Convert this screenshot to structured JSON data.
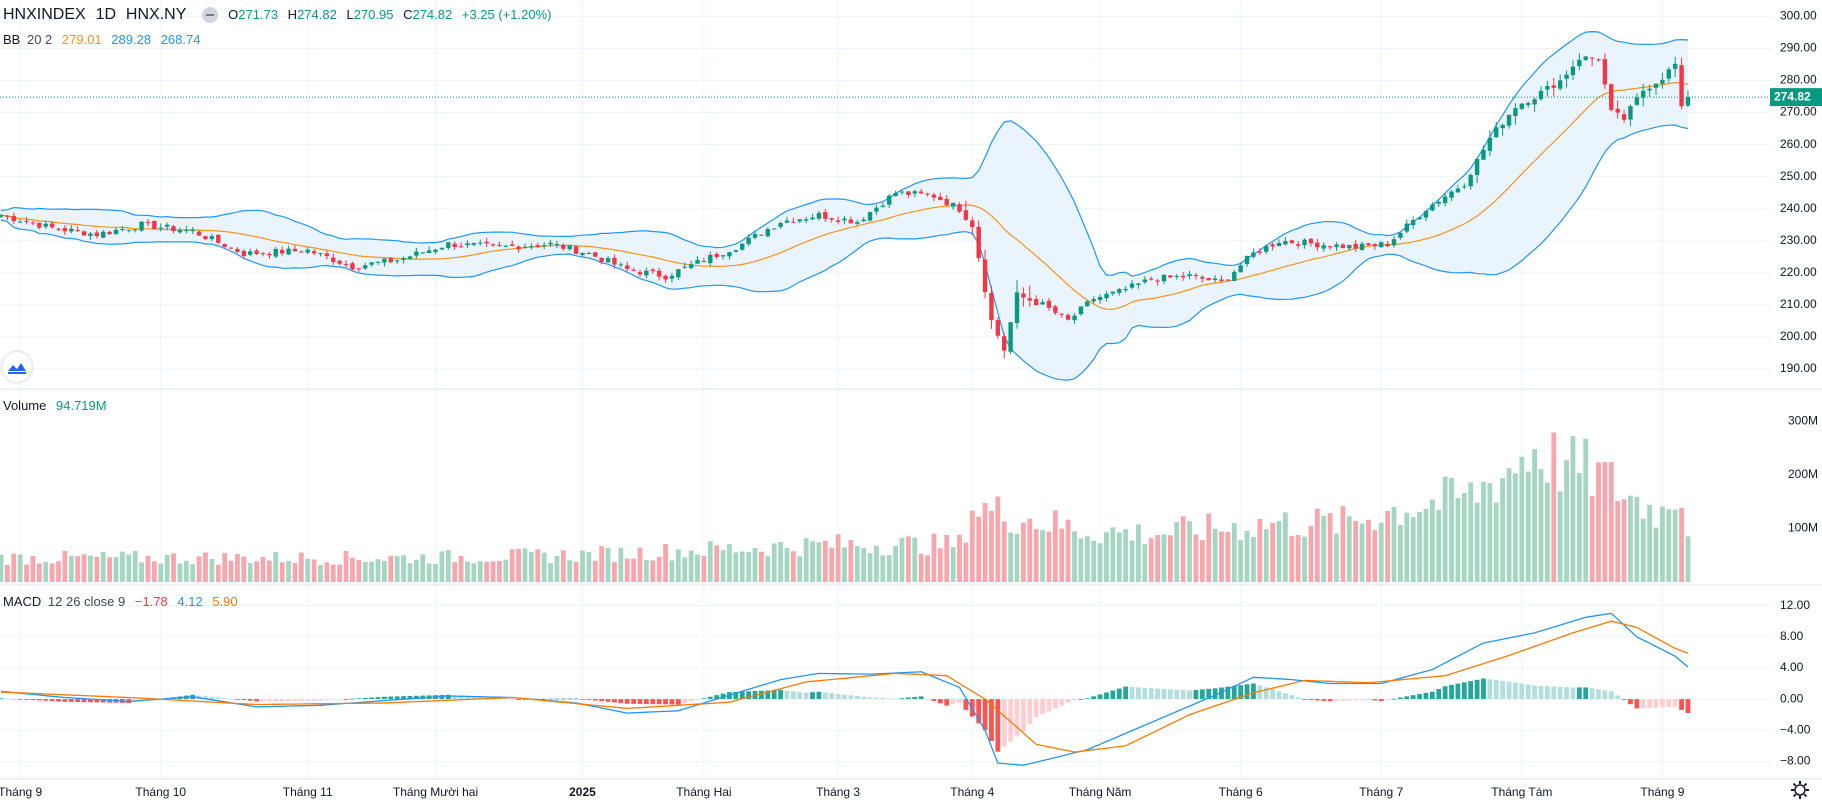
{
  "header": {
    "symbol": "HNXINDEX",
    "interval": "1D",
    "exchange": "HNX.NY",
    "ohlc": {
      "open_label": "O",
      "open": "271.73",
      "high_label": "H",
      "high": "274.82",
      "low_label": "L",
      "low": "270.95",
      "close_label": "C",
      "close": "274.82",
      "change": "+3.25 (+1.20%)"
    }
  },
  "bb_legend": {
    "name": "BB",
    "params": "20 2",
    "basis": "279.01",
    "upper": "289.28",
    "lower": "268.74"
  },
  "volume_legend": {
    "name": "Volume",
    "value": "94.719M"
  },
  "macd_legend": {
    "name": "MACD",
    "params": "12 26 close 9",
    "hist": "−1.78",
    "macd": "4.12",
    "signal": "5.90"
  },
  "colors": {
    "up": "#089981",
    "down": "#f23645",
    "vol_up": "#a5d6c1",
    "vol_down": "#f7a6ad",
    "bb_basis": "#f7931a",
    "bb_band": "#2196f3",
    "bb_fill": "#eaf4fd",
    "macd_line": "#2196f3",
    "signal_line": "#ff7a00",
    "hist_up_strong": "#26a69a",
    "hist_up_weak": "#b2dfdb",
    "hist_down_strong": "#ff5252",
    "hist_down_weak": "#ffcdd2",
    "price_tag": "#089981",
    "grid": "#f0f3fa"
  },
  "chart_data": {
    "type": "candlestick",
    "last_price": "274.82",
    "price_axis": {
      "ylim": [
        185,
        302
      ],
      "ticks": [
        "300.00",
        "290.00",
        "280.00",
        "270.00",
        "260.00",
        "250.00",
        "240.00",
        "230.00",
        "220.00",
        "210.00",
        "200.00",
        "190.00"
      ]
    },
    "volume_axis": {
      "ylim": [
        0,
        340
      ],
      "unit": "M",
      "ticks": [
        "300M",
        "200M",
        "100M"
      ]
    },
    "macd_axis": {
      "ylim": [
        -10,
        14
      ],
      "ticks": [
        "12.00",
        "8.00",
        "4.00",
        "0.00",
        "−4.00",
        "−8.00"
      ]
    },
    "x_ticks": [
      {
        "label": "Tháng 9",
        "bar": 3
      },
      {
        "label": "Tháng 10",
        "bar": 25
      },
      {
        "label": "Tháng 11",
        "bar": 48
      },
      {
        "label": "Tháng Mười hai",
        "bar": 68
      },
      {
        "label": "2025",
        "bar": 91
      },
      {
        "label": "Tháng Hai",
        "bar": 110
      },
      {
        "label": "Tháng 3",
        "bar": 131
      },
      {
        "label": "Tháng 4",
        "bar": 152
      },
      {
        "label": "Tháng Năm",
        "bar": 172
      },
      {
        "label": "Tháng 6",
        "bar": 194
      },
      {
        "label": "Tháng 7",
        "bar": 216
      },
      {
        "label": "Tháng Tám",
        "bar": 238
      },
      {
        "label": "Tháng 9",
        "bar": 260
      }
    ],
    "bars": 264,
    "close_anchors": [
      [
        0,
        238
      ],
      [
        8,
        234
      ],
      [
        15,
        232
      ],
      [
        22,
        235
      ],
      [
        30,
        233
      ],
      [
        38,
        226
      ],
      [
        48,
        227
      ],
      [
        55,
        222
      ],
      [
        62,
        224
      ],
      [
        70,
        229
      ],
      [
        78,
        228
      ],
      [
        86,
        229
      ],
      [
        92,
        226
      ],
      [
        98,
        221
      ],
      [
        104,
        219
      ],
      [
        110,
        224
      ],
      [
        116,
        229
      ],
      [
        122,
        236
      ],
      [
        128,
        238
      ],
      [
        134,
        236
      ],
      [
        140,
        245
      ],
      [
        146,
        244
      ],
      [
        150,
        240
      ],
      [
        152,
        235
      ],
      [
        155,
        205
      ],
      [
        157,
        196
      ],
      [
        159,
        213
      ],
      [
        163,
        210
      ],
      [
        167,
        205
      ],
      [
        171,
        212
      ],
      [
        175,
        214
      ],
      [
        180,
        218
      ],
      [
        186,
        219
      ],
      [
        191,
        217
      ],
      [
        196,
        226
      ],
      [
        200,
        230
      ],
      [
        206,
        229
      ],
      [
        212,
        228
      ],
      [
        217,
        229
      ],
      [
        223,
        240
      ],
      [
        229,
        248
      ],
      [
        233,
        262
      ],
      [
        237,
        272
      ],
      [
        240,
        275
      ],
      [
        244,
        280
      ],
      [
        247,
        287
      ],
      [
        250,
        287
      ],
      [
        252,
        270
      ],
      [
        254,
        268
      ],
      [
        257,
        277
      ],
      [
        260,
        281
      ],
      [
        262,
        285
      ],
      [
        263,
        271
      ],
      [
        264,
        274.82
      ]
    ],
    "volume_anchors": [
      [
        0,
        45
      ],
      [
        30,
        45
      ],
      [
        60,
        45
      ],
      [
        90,
        50
      ],
      [
        110,
        60
      ],
      [
        130,
        70
      ],
      [
        150,
        70
      ],
      [
        152,
        140
      ],
      [
        160,
        120
      ],
      [
        170,
        95
      ],
      [
        180,
        90
      ],
      [
        190,
        100
      ],
      [
        200,
        110
      ],
      [
        210,
        110
      ],
      [
        220,
        140
      ],
      [
        230,
        160
      ],
      [
        236,
        210
      ],
      [
        240,
        250
      ],
      [
        244,
        220
      ],
      [
        250,
        200
      ],
      [
        256,
        150
      ],
      [
        260,
        130
      ],
      [
        262,
        170
      ],
      [
        263,
        175
      ],
      [
        264,
        95
      ]
    ],
    "macd_anchors": [
      [
        0,
        1.0
      ],
      [
        10,
        0.2
      ],
      [
        20,
        -0.3
      ],
      [
        30,
        0.3
      ],
      [
        40,
        -1.0
      ],
      [
        50,
        -0.8
      ],
      [
        60,
        -0.2
      ],
      [
        70,
        0.4
      ],
      [
        80,
        0.2
      ],
      [
        90,
        -0.5
      ],
      [
        98,
        -1.8
      ],
      [
        106,
        -1.5
      ],
      [
        114,
        0.5
      ],
      [
        122,
        2.5
      ],
      [
        128,
        3.3
      ],
      [
        136,
        3.2
      ],
      [
        144,
        3.5
      ],
      [
        150,
        1.5
      ],
      [
        154,
        -4.0
      ],
      [
        156,
        -8.2
      ],
      [
        160,
        -8.5
      ],
      [
        170,
        -6.5
      ],
      [
        180,
        -3.0
      ],
      [
        190,
        0.5
      ],
      [
        196,
        2.8
      ],
      [
        202,
        2.5
      ],
      [
        208,
        2.0
      ],
      [
        216,
        2.0
      ],
      [
        224,
        3.8
      ],
      [
        232,
        7.2
      ],
      [
        240,
        8.5
      ],
      [
        248,
        10.5
      ],
      [
        252,
        11.0
      ],
      [
        256,
        8.0
      ],
      [
        262,
        5.5
      ],
      [
        264,
        4.12
      ]
    ],
    "signal_anchors": [
      [
        0,
        0.9
      ],
      [
        20,
        0.2
      ],
      [
        40,
        -0.7
      ],
      [
        60,
        -0.5
      ],
      [
        80,
        0.2
      ],
      [
        98,
        -1.2
      ],
      [
        114,
        -0.4
      ],
      [
        126,
        2.2
      ],
      [
        140,
        3.3
      ],
      [
        148,
        3.0
      ],
      [
        154,
        0.0
      ],
      [
        162,
        -5.8
      ],
      [
        168,
        -6.8
      ],
      [
        176,
        -6.0
      ],
      [
        186,
        -2.0
      ],
      [
        196,
        0.8
      ],
      [
        204,
        2.4
      ],
      [
        214,
        2.1
      ],
      [
        226,
        3.0
      ],
      [
        236,
        5.6
      ],
      [
        246,
        8.5
      ],
      [
        252,
        10.0
      ],
      [
        256,
        9.2
      ],
      [
        262,
        6.5
      ],
      [
        264,
        5.9
      ]
    ]
  }
}
